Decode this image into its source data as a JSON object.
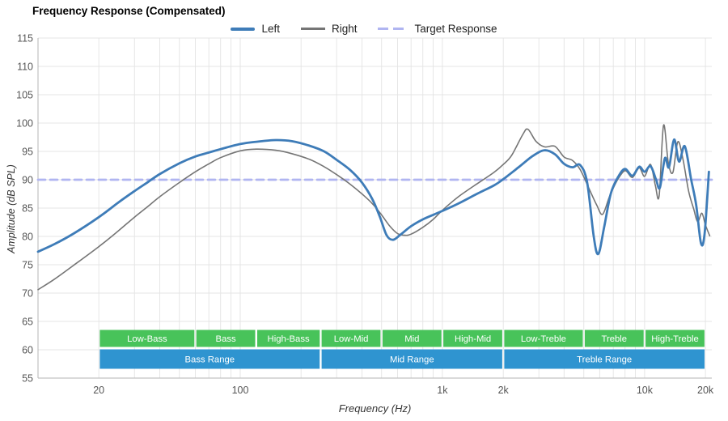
{
  "chart_data": {
    "type": "line",
    "title": "Frequency Response (Compensated)",
    "xlabel": "Frequency (Hz)",
    "ylabel": "Amplitude (dB SPL)",
    "x_scale": "log",
    "xlim": [
      10,
      21500
    ],
    "ylim": [
      55,
      115
    ],
    "grid": true,
    "legend_position": "top",
    "x_ticks": [
      {
        "value": 20,
        "label": "20"
      },
      {
        "value": 100,
        "label": "100"
      },
      {
        "value": 1000,
        "label": "1k"
      },
      {
        "value": 2000,
        "label": "2k"
      },
      {
        "value": 10000,
        "label": "10k"
      },
      {
        "value": 20000,
        "label": "20k"
      }
    ],
    "y_ticks": [
      55,
      60,
      65,
      70,
      75,
      80,
      85,
      90,
      95,
      100,
      105,
      110,
      115
    ],
    "series": [
      {
        "name": "Left",
        "color": "#3e7cb8",
        "line_width": 2.8,
        "dash": null,
        "points": [
          [
            10,
            77.3
          ],
          [
            12,
            78.6
          ],
          [
            15,
            80.5
          ],
          [
            20,
            83.4
          ],
          [
            25,
            86.0
          ],
          [
            30,
            88.0
          ],
          [
            35,
            89.6
          ],
          [
            40,
            91.0
          ],
          [
            50,
            92.9
          ],
          [
            60,
            94.1
          ],
          [
            70,
            94.8
          ],
          [
            80,
            95.4
          ],
          [
            100,
            96.3
          ],
          [
            120,
            96.7
          ],
          [
            150,
            97.0
          ],
          [
            180,
            96.8
          ],
          [
            220,
            96.0
          ],
          [
            260,
            95.0
          ],
          [
            300,
            93.5
          ],
          [
            350,
            91.7
          ],
          [
            400,
            89.5
          ],
          [
            450,
            86.6
          ],
          [
            490,
            83.5
          ],
          [
            530,
            80.2
          ],
          [
            570,
            79.4
          ],
          [
            620,
            80.3
          ],
          [
            700,
            81.8
          ],
          [
            800,
            83.0
          ],
          [
            900,
            83.8
          ],
          [
            1000,
            84.5
          ],
          [
            1200,
            85.8
          ],
          [
            1500,
            87.6
          ],
          [
            1800,
            89.0
          ],
          [
            2000,
            90.1
          ],
          [
            2400,
            92.3
          ],
          [
            2800,
            94.2
          ],
          [
            3200,
            95.2
          ],
          [
            3600,
            94.5
          ],
          [
            4000,
            92.8
          ],
          [
            4400,
            92.2
          ],
          [
            4800,
            92.6
          ],
          [
            5200,
            89.5
          ],
          [
            5600,
            80.0
          ],
          [
            5900,
            76.9
          ],
          [
            6300,
            81.5
          ],
          [
            6800,
            87.5
          ],
          [
            7400,
            90.5
          ],
          [
            8000,
            91.9
          ],
          [
            8700,
            90.7
          ],
          [
            9400,
            92.3
          ],
          [
            10000,
            91.4
          ],
          [
            10700,
            92.4
          ],
          [
            11400,
            90.0
          ],
          [
            11900,
            88.6
          ],
          [
            12600,
            93.8
          ],
          [
            13200,
            92.2
          ],
          [
            14000,
            97.1
          ],
          [
            14800,
            93.2
          ],
          [
            15800,
            95.9
          ],
          [
            17000,
            90.0
          ],
          [
            18000,
            85.5
          ],
          [
            19000,
            78.8
          ],
          [
            19800,
            80.5
          ],
          [
            20800,
            91.4
          ]
        ]
      },
      {
        "name": "Right",
        "color": "#757575",
        "line_width": 1.6,
        "dash": null,
        "points": [
          [
            10,
            70.6
          ],
          [
            12,
            72.4
          ],
          [
            15,
            74.9
          ],
          [
            20,
            78.2
          ],
          [
            25,
            81.0
          ],
          [
            30,
            83.4
          ],
          [
            35,
            85.3
          ],
          [
            40,
            87.0
          ],
          [
            50,
            89.5
          ],
          [
            60,
            91.4
          ],
          [
            70,
            92.8
          ],
          [
            80,
            93.9
          ],
          [
            100,
            95.1
          ],
          [
            120,
            95.4
          ],
          [
            150,
            95.2
          ],
          [
            180,
            94.6
          ],
          [
            220,
            93.6
          ],
          [
            260,
            92.3
          ],
          [
            300,
            90.9
          ],
          [
            350,
            89.2
          ],
          [
            400,
            87.5
          ],
          [
            450,
            85.8
          ],
          [
            500,
            83.8
          ],
          [
            550,
            81.8
          ],
          [
            600,
            80.5
          ],
          [
            650,
            80.2
          ],
          [
            700,
            80.4
          ],
          [
            800,
            81.6
          ],
          [
            900,
            83.0
          ],
          [
            1000,
            84.6
          ],
          [
            1200,
            87.0
          ],
          [
            1500,
            89.4
          ],
          [
            1800,
            91.3
          ],
          [
            2000,
            92.7
          ],
          [
            2200,
            94.3
          ],
          [
            2500,
            98.0
          ],
          [
            2650,
            98.9
          ],
          [
            2900,
            96.8
          ],
          [
            3200,
            95.8
          ],
          [
            3600,
            95.9
          ],
          [
            4000,
            94.0
          ],
          [
            4400,
            93.4
          ],
          [
            4800,
            91.8
          ],
          [
            5300,
            88.5
          ],
          [
            5800,
            85.5
          ],
          [
            6200,
            83.9
          ],
          [
            6700,
            87.0
          ],
          [
            7300,
            89.8
          ],
          [
            8000,
            91.6
          ],
          [
            8700,
            90.4
          ],
          [
            9400,
            92.1
          ],
          [
            10000,
            90.6
          ],
          [
            10700,
            92.7
          ],
          [
            11300,
            89.0
          ],
          [
            11800,
            87.2
          ],
          [
            12400,
            99.6
          ],
          [
            13100,
            93.0
          ],
          [
            13800,
            91.3
          ],
          [
            14600,
            96.7
          ],
          [
            15500,
            93.5
          ],
          [
            16500,
            88.0
          ],
          [
            17500,
            84.8
          ],
          [
            18300,
            82.6
          ],
          [
            19200,
            84.1
          ],
          [
            20000,
            82.0
          ],
          [
            21000,
            80.1
          ]
        ]
      },
      {
        "name": "Target Response",
        "color": "#b0b5f1",
        "line_width": 2.8,
        "dash": [
          9,
          6
        ],
        "points": [
          [
            10,
            90
          ],
          [
            21500,
            90
          ]
        ]
      }
    ]
  },
  "bands": {
    "sub_row": {
      "color": "#48c35a",
      "items": [
        {
          "label": "Low-Bass",
          "from": 20,
          "to": 60
        },
        {
          "label": "Bass",
          "from": 60,
          "to": 120
        },
        {
          "label": "High-Bass",
          "from": 120,
          "to": 250
        },
        {
          "label": "Low-Mid",
          "from": 250,
          "to": 500
        },
        {
          "label": "Mid",
          "from": 500,
          "to": 1000
        },
        {
          "label": "High-Mid",
          "from": 1000,
          "to": 2000
        },
        {
          "label": "Low-Treble",
          "from": 2000,
          "to": 5000
        },
        {
          "label": "Treble",
          "from": 5000,
          "to": 10000
        },
        {
          "label": "High-Treble",
          "from": 10000,
          "to": 20000
        }
      ]
    },
    "main_row": {
      "color": "#2f94d0",
      "items": [
        {
          "label": "Bass Range",
          "from": 20,
          "to": 250
        },
        {
          "label": "Mid Range",
          "from": 250,
          "to": 2000
        },
        {
          "label": "Treble Range",
          "from": 2000,
          "to": 20000
        }
      ]
    }
  }
}
